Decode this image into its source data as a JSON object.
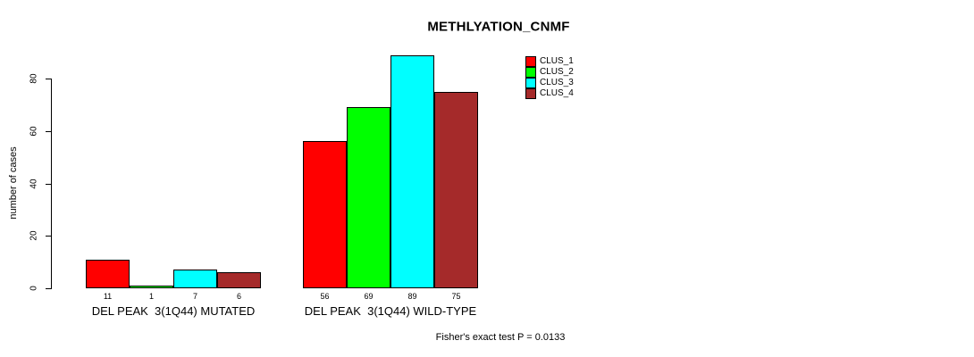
{
  "chart_data": {
    "type": "bar",
    "title": "METHLYATION_CNMF",
    "ylabel": "number of cases",
    "xlabel": "",
    "yticks": [
      0,
      20,
      40,
      60,
      80
    ],
    "ylim": [
      0,
      95
    ],
    "grid": false,
    "legend_position": "top-right",
    "bar_value_labels_shown": true,
    "categories": [
      "DEL PEAK  3(1Q44) MUTATED",
      "DEL PEAK  3(1Q44) WILD-TYPE"
    ],
    "series": [
      {
        "name": "CLUS_1",
        "color": "#ff0000",
        "values": [
          11,
          56
        ]
      },
      {
        "name": "CLUS_2",
        "color": "#00ff00",
        "values": [
          1,
          69
        ]
      },
      {
        "name": "CLUS_3",
        "color": "#00ffff",
        "values": [
          7,
          89
        ]
      },
      {
        "name": "CLUS_4",
        "color": "#a52a2a",
        "values": [
          6,
          75
        ]
      }
    ],
    "footnote": "Fisher's exact test P = 0.0133"
  },
  "colors": {
    "axis": "#000000",
    "text": "#000000",
    "background": "#ffffff"
  }
}
